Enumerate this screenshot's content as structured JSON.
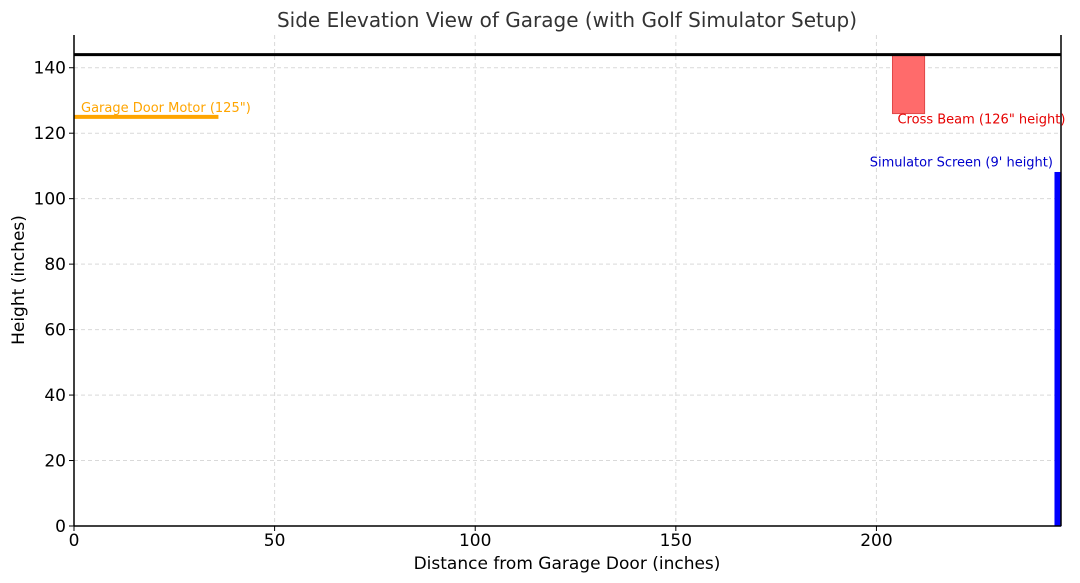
{
  "chart_data": {
    "type": "bar",
    "title": "Side Elevation View of Garage (with Golf Simulator Setup)",
    "xlabel": "Distance from Garage Door (inches)",
    "ylabel": "Height (inches)",
    "xlim": [
      0,
      246
    ],
    "ylim": [
      0,
      150
    ],
    "xticks": [
      0,
      50,
      100,
      150,
      200
    ],
    "yticks": [
      0,
      20,
      40,
      60,
      80,
      100,
      120,
      140
    ],
    "grid": true,
    "ceiling": {
      "y": 144,
      "color": "#000000"
    },
    "elements": [
      {
        "id": "motor",
        "kind": "line",
        "label": "Garage Door Motor (125\")",
        "x": [
          0,
          36
        ],
        "y": 125,
        "color": "#ffa500"
      },
      {
        "id": "beam",
        "kind": "rect",
        "label": "Cross Beam (126\" height)",
        "x": [
          204,
          212
        ],
        "y": [
          126,
          144
        ],
        "color": "#ff6b6b",
        "label_color": "#e60000"
      },
      {
        "id": "screen",
        "kind": "rect",
        "label": "Simulator Screen (9' height)",
        "x": [
          244.5,
          246
        ],
        "y": [
          0,
          108
        ],
        "color": "#0000ff",
        "label_color": "#0000cc"
      }
    ]
  }
}
